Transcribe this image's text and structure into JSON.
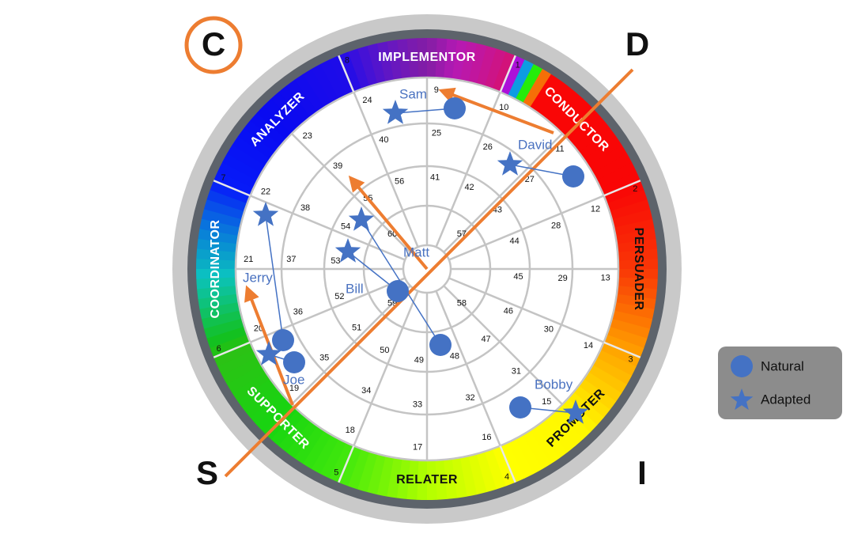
{
  "corner_labels": {
    "c": "C",
    "d": "D",
    "s": "S",
    "i": "I"
  },
  "segments": [
    "IMPLEMENTOR",
    "CONDUCTOR",
    "PERSUADER",
    "PROMOTER",
    "RELATER",
    "SUPPORTER",
    "COORDINATOR",
    "ANALYZER"
  ],
  "numbers": [
    1,
    2,
    3,
    4,
    5,
    6,
    7,
    8,
    9,
    10,
    11,
    12,
    13,
    14,
    15,
    16,
    17,
    18,
    19,
    20,
    21,
    22,
    23,
    24,
    25,
    26,
    27,
    28,
    29,
    30,
    31,
    32,
    33,
    34,
    35,
    36,
    37,
    38,
    39,
    40,
    41,
    42,
    43,
    44,
    45,
    46,
    47,
    48,
    49,
    50,
    51,
    52,
    53,
    54,
    55,
    56,
    57,
    58,
    59,
    60
  ],
  "people": [
    {
      "name": "Sam"
    },
    {
      "name": "David"
    },
    {
      "name": "Matt"
    },
    {
      "name": "Bill"
    },
    {
      "name": "Jerry"
    },
    {
      "name": "Joe"
    },
    {
      "name": "Bobby"
    }
  ],
  "legend": {
    "natural": "Natural",
    "adapted": "Adapted"
  }
}
